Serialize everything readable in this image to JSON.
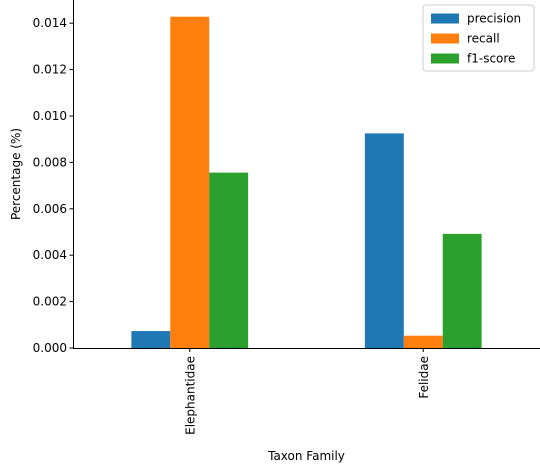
{
  "chart_data": {
    "type": "bar",
    "title": "",
    "xlabel": "Taxon Family",
    "ylabel": "Percentage (%)",
    "categories": [
      "Elephantidae",
      "Felidae"
    ],
    "series": [
      {
        "name": "precision",
        "values": [
          0.00073,
          0.00925
        ],
        "color": "#1f77b4"
      },
      {
        "name": "recall",
        "values": [
          0.01428,
          0.00053
        ],
        "color": "#ff7f0e"
      },
      {
        "name": "f1-score",
        "values": [
          0.00756,
          0.00492
        ],
        "color": "#2ca02c"
      }
    ],
    "ylim": [
      0,
      0.015
    ],
    "yticks": [
      "0.000",
      "0.002",
      "0.004",
      "0.006",
      "0.008",
      "0.010",
      "0.012",
      "0.014"
    ],
    "grid": false,
    "legend_position": "top-right"
  }
}
